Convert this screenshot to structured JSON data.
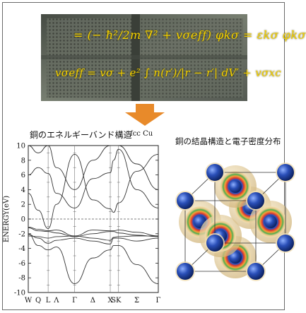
{
  "photo": {
    "equation_1": "= (− ħ²/2m ∇² + vσeff) φkσ = εkσ φkσ",
    "equation_2": "vσeff = vσ + e² ∫ n(r′)/|r − r′| dV′ + vσxc"
  },
  "arrow": {
    "color": "#e88a2a"
  },
  "band_structure": {
    "title": "銅のエネルギーバンド構造",
    "subtitle": "fcc Cu",
    "y_axis_label": "ENERGY(eV)",
    "y_ticks": [
      "10",
      "8",
      "6",
      "4",
      "2",
      "0",
      "-2",
      "-4",
      "-6",
      "-8",
      "-10"
    ],
    "k_points": [
      "W",
      "Q",
      "L",
      "Λ",
      "Γ",
      "Δ",
      "X",
      "S",
      "K",
      "Σ",
      "Γ"
    ]
  },
  "crystal": {
    "title": "銅の結晶構造と電子密度分布",
    "atom_color": "#1f3f9a",
    "density_colors": [
      "#e8c98a",
      "#4fae4f",
      "#e23b2e"
    ]
  },
  "chart_data": {
    "type": "line",
    "title": "銅のエネルギーバンド構造",
    "subtitle": "fcc Cu",
    "ylabel": "ENERGY(eV)",
    "ylim": [
      -10,
      10
    ],
    "fermi_level": 0,
    "x_categories": [
      "W",
      "Q",
      "L",
      "Λ",
      "Γ",
      "Δ",
      "X",
      "S",
      "K",
      "Σ",
      "Γ"
    ],
    "x_positions": [
      0,
      0.6,
      1.2,
      1.7,
      2.8,
      3.9,
      4.95,
      5.15,
      5.45,
      6.55,
      7.85
    ],
    "series": [
      {
        "values": [
          -2.0,
          -3.6,
          -4.2,
          -3.8,
          -8.8,
          -5.3,
          -4.2,
          -3.6,
          -3.6,
          -6.2,
          -8.8
        ]
      },
      {
        "values": [
          -2.1,
          -2.6,
          -3.3,
          -2.9,
          -2.6,
          -3.0,
          -3.4,
          -2.6,
          -2.6,
          -3.0,
          -2.6
        ]
      },
      {
        "values": [
          -2.3,
          -2.4,
          -2.6,
          -2.4,
          -2.3,
          -2.6,
          -2.9,
          -2.5,
          -2.4,
          -2.3,
          -2.3
        ]
      },
      {
        "values": [
          -1.2,
          -1.6,
          -1.7,
          -1.9,
          -2.4,
          -2.0,
          -1.7,
          -1.7,
          -1.9,
          -2.2,
          -2.4
        ]
      },
      {
        "values": [
          -1.1,
          -1.4,
          -1.6,
          -1.5,
          -2.3,
          -1.5,
          -1.6,
          -1.6,
          -1.5,
          -1.8,
          -2.3
        ]
      },
      {
        "values": [
          3.5,
          1.2,
          -1.3,
          2.0,
          8.8,
          2.6,
          1.4,
          0.9,
          2.2,
          6.5,
          8.8
        ]
      },
      {
        "values": [
          6.0,
          7.0,
          6.2,
          3.5,
          1.5,
          5.5,
          6.3,
          8.0,
          9.5,
          4.0,
          1.5
        ]
      },
      {
        "values": [
          10.0,
          9.0,
          10.0,
          7.0,
          4.0,
          8.0,
          10.0,
          10.0,
          10.0,
          7.5,
          4.0
        ]
      }
    ]
  }
}
